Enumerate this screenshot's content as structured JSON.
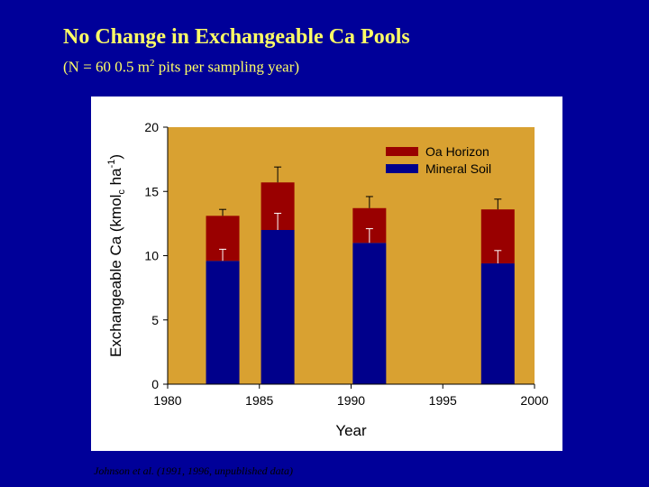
{
  "title": "No Change in Exchangeable Ca Pools",
  "subtitle": {
    "prefix": "(N = 60   0.5 m",
    "sup": "2",
    "suffix": " pits per sampling year)"
  },
  "citation": "Johnson et al. (1991, 1996, unpublished data)",
  "colors": {
    "background": "#000099",
    "title": "#FFFF66",
    "plot_area": "#D9A131",
    "oa_horizon": "#990000",
    "mineral_soil": "#00008B"
  },
  "chart_data": {
    "type": "bar",
    "stacked": true,
    "xlabel": "Year",
    "ylabel": "Exchangeable Ca (kmol",
    "ylabel_sub": "c",
    "ylabel_after": " ha",
    "ylabel_sup": "-1",
    "ylabel_close": ")",
    "xlim": [
      1980,
      2000
    ],
    "ylim": [
      0,
      20
    ],
    "xticks": [
      "1980",
      "1985",
      "1990",
      "1995",
      "2000"
    ],
    "yticks": [
      "0",
      "5",
      "10",
      "15",
      "20"
    ],
    "x": [
      1983,
      1986,
      1991,
      1998
    ],
    "series": [
      {
        "name": "Mineral Soil",
        "values": [
          9.6,
          12.0,
          11.0,
          9.4
        ],
        "error": [
          0.9,
          1.3,
          1.1,
          1.0
        ]
      },
      {
        "name": "Oa Horizon",
        "values": [
          3.5,
          3.7,
          2.7,
          4.2
        ],
        "error": [
          0.5,
          1.2,
          0.9,
          0.8
        ]
      }
    ],
    "legend_position": "top-right"
  }
}
